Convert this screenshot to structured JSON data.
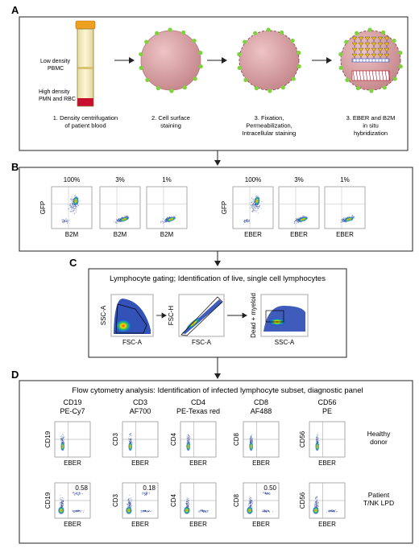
{
  "panels": {
    "A": {
      "letter": "A",
      "tube_labels": [
        "Low density",
        "PBMC",
        "High density",
        "PMN and RBC"
      ],
      "steps": [
        [
          "1. Density centrifugation",
          "of patient blood"
        ],
        [
          "2. Cell surface",
          "staining"
        ],
        [
          "3. Fixation,",
          "Permeabilization,",
          "Intracellular staining"
        ],
        [
          "3. EBER and B2M",
          "in situ",
          "hybridization"
        ]
      ]
    },
    "B": {
      "letter": "B",
      "plots": [
        {
          "pct": "100%",
          "x": "B2M",
          "y": "GFP"
        },
        {
          "pct": "3%",
          "x": "B2M",
          "y": ""
        },
        {
          "pct": "1%",
          "x": "B2M",
          "y": ""
        },
        {
          "pct": "100%",
          "x": "EBER",
          "y": "GFP"
        },
        {
          "pct": "3%",
          "x": "EBER",
          "y": ""
        },
        {
          "pct": "1%",
          "x": "EBER",
          "y": ""
        }
      ]
    },
    "C": {
      "letter": "C",
      "title": "Lymphocyte gating; Identification of live, single cell lymphocytes",
      "plots": [
        {
          "x": "FSC-A",
          "y": "SSC-A"
        },
        {
          "x": "FSC-A",
          "y": "FSC-H"
        },
        {
          "x": "SSC-A",
          "y": "Dead + myeloid"
        }
      ]
    },
    "D": {
      "letter": "D",
      "title": "Flow cytometry analysis: Identification of infected lymphocyte subset, diagnostic panel",
      "columns": [
        {
          "marker": "CD19",
          "fluor": "PE-Cy7",
          "y": "CD19"
        },
        {
          "marker": "CD3",
          "fluor": "AF700",
          "y": "CD3"
        },
        {
          "marker": "CD4",
          "fluor": "PE-Texas red",
          "y": "CD4"
        },
        {
          "marker": "CD8",
          "fluor": "AF488",
          "y": "CD8"
        },
        {
          "marker": "CD56",
          "fluor": "PE",
          "y": "CD56"
        }
      ],
      "x_label": "EBER",
      "rows": [
        {
          "label": [
            "Healthy",
            "donor"
          ],
          "values": [
            "",
            "",
            "",
            "",
            ""
          ]
        },
        {
          "label": [
            "Patient",
            "T/NK LPD"
          ],
          "values": [
            "0.58",
            "0.18",
            "",
            "0.50",
            ""
          ]
        }
      ]
    }
  },
  "colors": {
    "cell": "#c98a8f",
    "green_dot": "#7cd33a",
    "frame": "#222222"
  }
}
